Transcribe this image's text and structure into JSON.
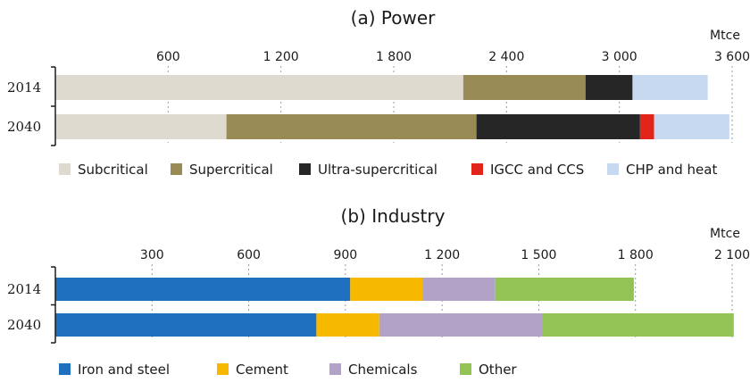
{
  "chart_data": [
    {
      "type": "bar",
      "orientation": "horizontal",
      "stacked": true,
      "title": "(a) Power",
      "unit_label": "Mtce",
      "xlim": [
        0,
        3600
      ],
      "ticks": [
        600,
        1200,
        1800,
        2400,
        3000,
        3600
      ],
      "tick_labels": [
        "600",
        "1 200",
        "1 800",
        "2 400",
        "3 000",
        "3 600"
      ],
      "categories": [
        "2014",
        "2040"
      ],
      "series": [
        {
          "name": "Subcritical",
          "color": "#dedad0",
          "values": [
            2170,
            910
          ]
        },
        {
          "name": "Supercritical",
          "color": "#988b55",
          "values": [
            650,
            1330
          ]
        },
        {
          "name": "Ultra-supercritical",
          "color": "#262626",
          "values": [
            250,
            870
          ]
        },
        {
          "name": "IGCC and CCS",
          "color": "#e3241b",
          "values": [
            0,
            75
          ]
        },
        {
          "name": "CHP and heat",
          "color": "#c6d9f1",
          "values": [
            400,
            400
          ]
        }
      ],
      "grid": "vertical dashed",
      "legend": "bottom"
    },
    {
      "type": "bar",
      "orientation": "horizontal",
      "stacked": true,
      "title": "(b) Industry",
      "unit_label": "Mtce",
      "xlim": [
        0,
        2100
      ],
      "ticks": [
        300,
        600,
        900,
        1200,
        1500,
        1800,
        2100
      ],
      "tick_labels": [
        "300",
        "600",
        "900",
        "1 200",
        "1 500",
        "1 800",
        "2 100"
      ],
      "categories": [
        "2014",
        "2040"
      ],
      "series": [
        {
          "name": "Iron and steel",
          "color": "#1f6fbf",
          "values": [
            915,
            810
          ]
        },
        {
          "name": "Cement",
          "color": "#f7b800",
          "values": [
            225,
            195
          ]
        },
        {
          "name": "Chemicals",
          "color": "#b3a2c7",
          "values": [
            225,
            505
          ]
        },
        {
          "name": "Other",
          "color": "#92c353",
          "values": [
            430,
            595
          ]
        }
      ],
      "grid": "vertical dashed",
      "legend": "bottom"
    }
  ]
}
